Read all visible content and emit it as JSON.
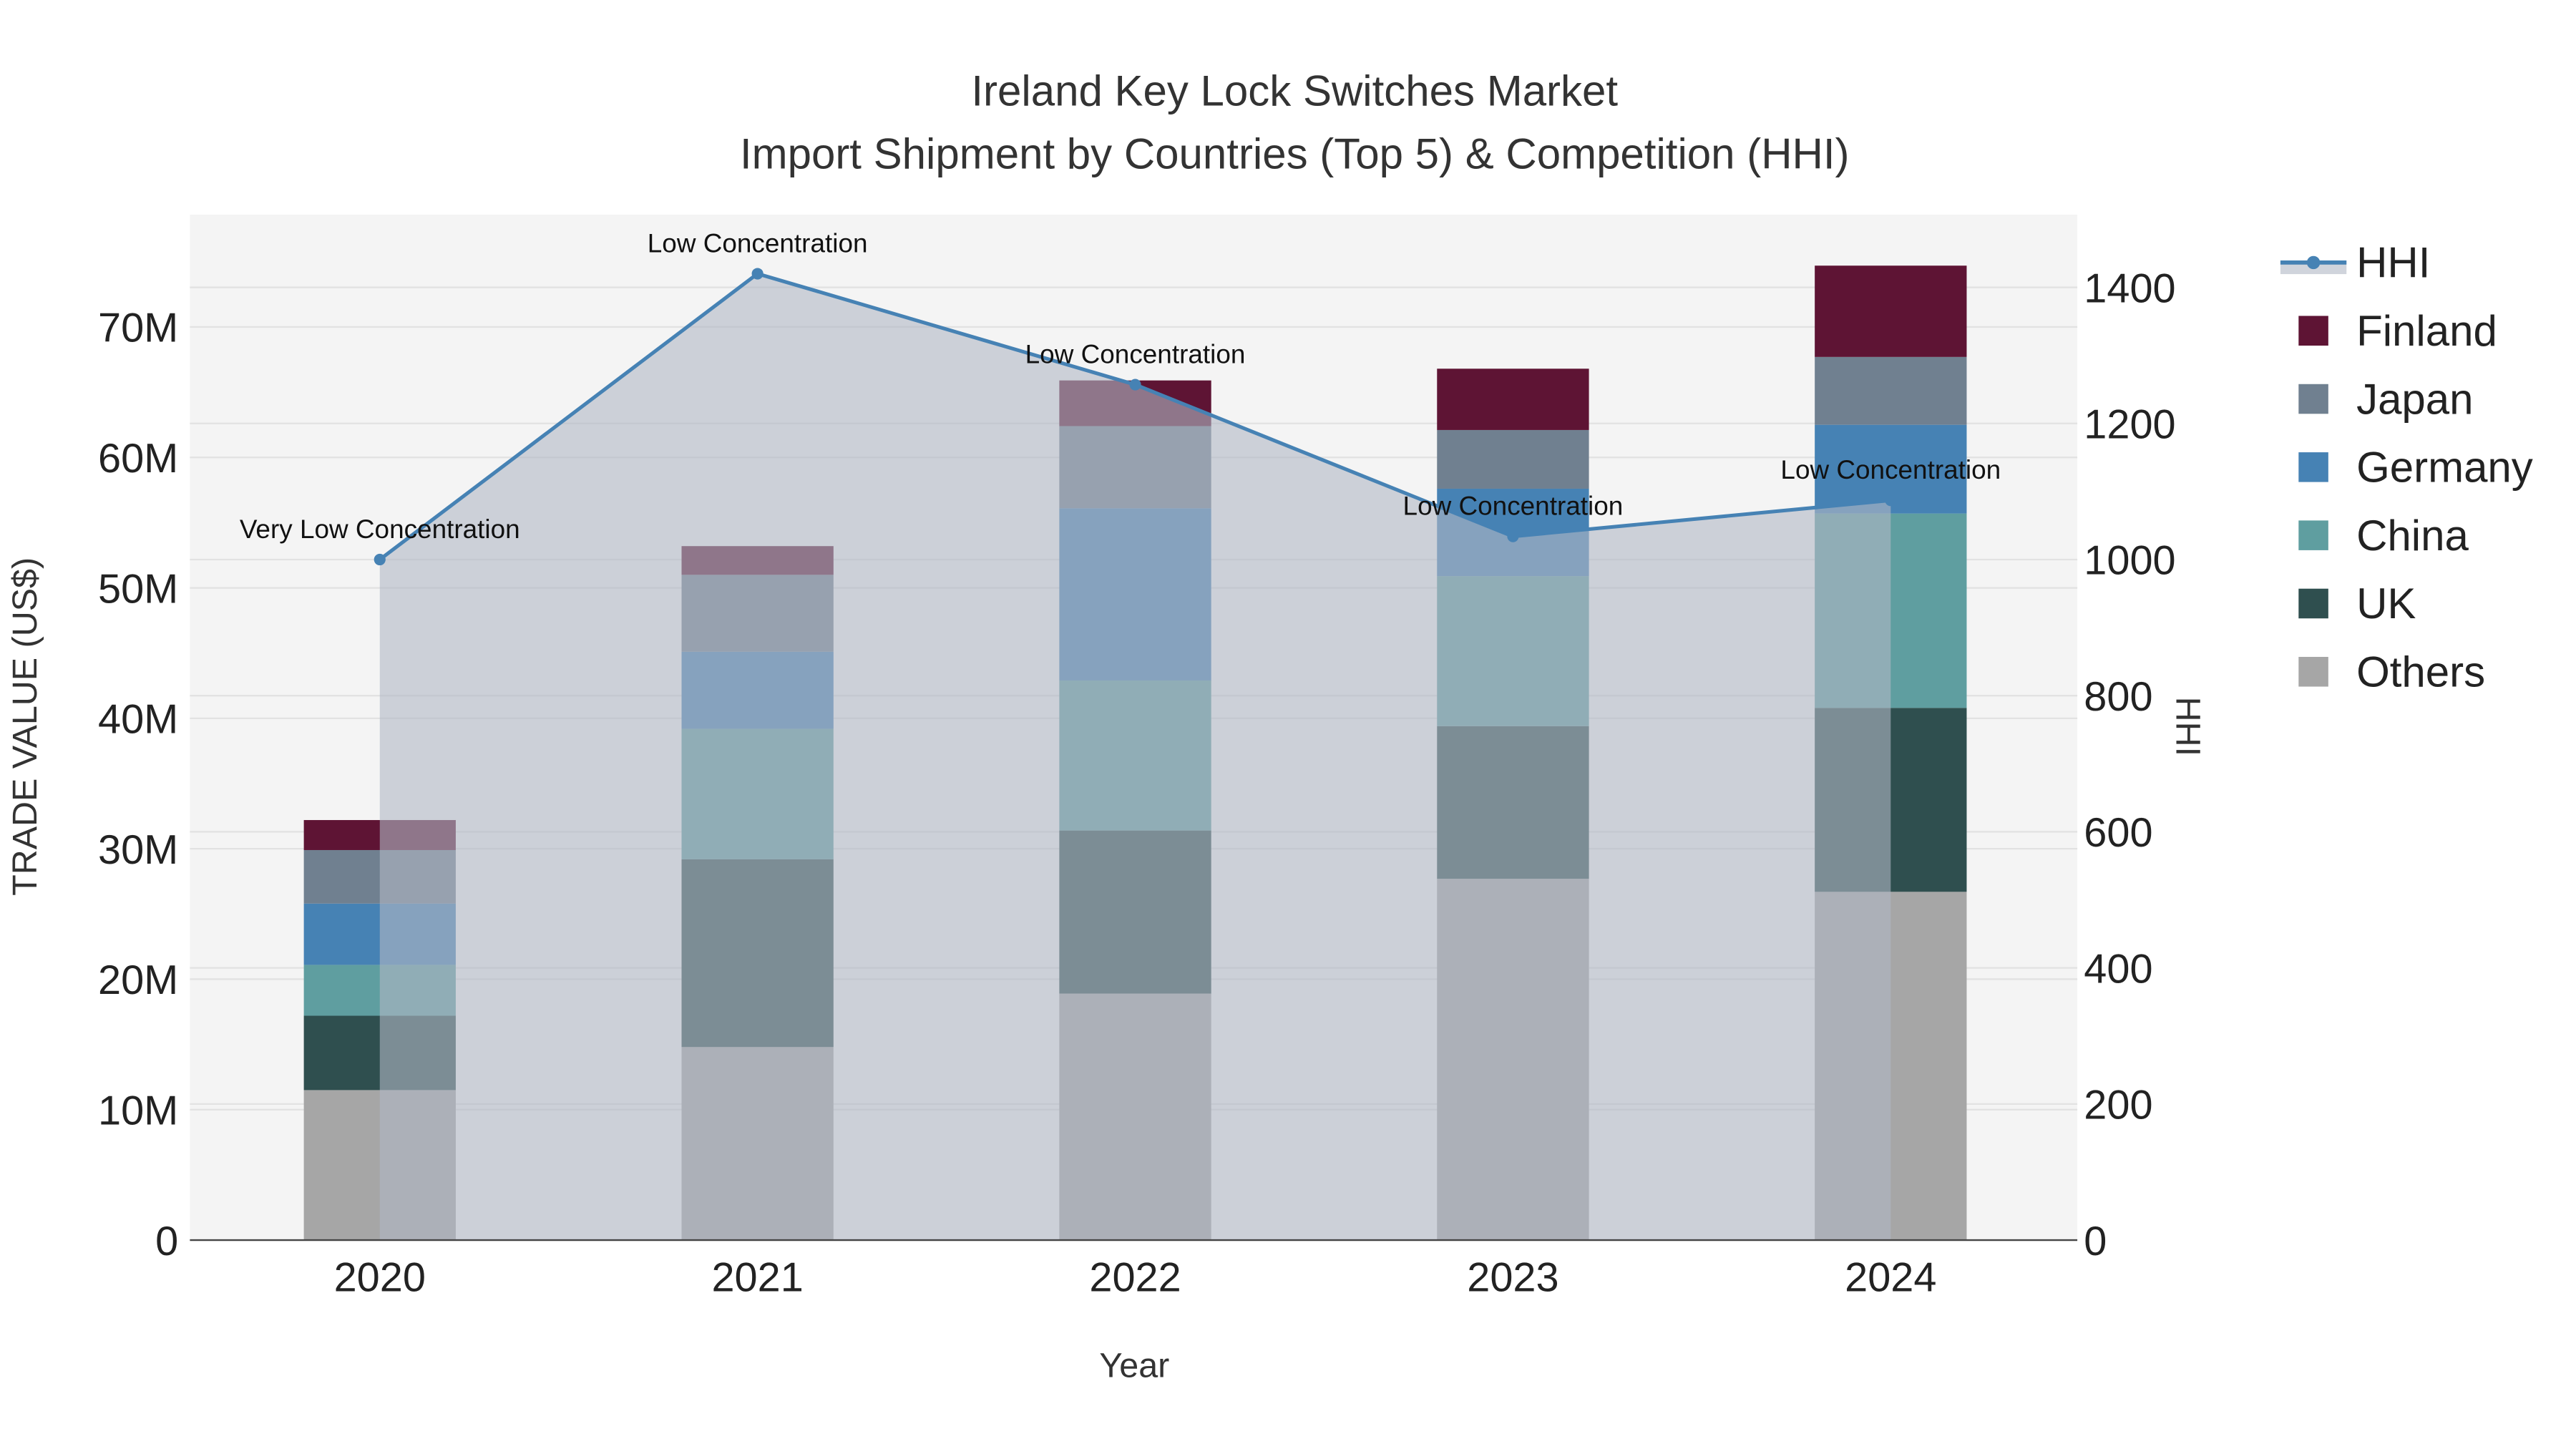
{
  "chart_data": {
    "type": "bar",
    "title": "Ireland Key Lock Switches Market",
    "subtitle": "Import Shipment by Countries (Top 5) & Competition (HHI)",
    "xlabel": "Year",
    "ylabel": "TRADE VALUE (US$)",
    "y2label": "HHI",
    "categories": [
      "2020",
      "2021",
      "2022",
      "2023",
      "2024"
    ],
    "ylim": [
      0,
      77000000
    ],
    "y2lim": [
      0,
      1500
    ],
    "yticks": [
      0,
      10000000,
      20000000,
      30000000,
      40000000,
      50000000,
      60000000,
      70000000
    ],
    "ytick_labels": [
      "0",
      "10M",
      "20M",
      "30M",
      "40M",
      "50M",
      "60M",
      "70M"
    ],
    "y2ticks": [
      0,
      200,
      400,
      600,
      800,
      1000,
      1200,
      1400
    ],
    "y2tick_labels": [
      "0",
      "200",
      "400",
      "600",
      "800",
      "1000",
      "1200",
      "1400"
    ],
    "grid": true,
    "legend_placement": "right",
    "series": [
      {
        "name": "Others",
        "color": "#a6a6a6",
        "values": [
          11500000,
          14800000,
          18900000,
          27700000,
          26700000
        ]
      },
      {
        "name": "UK",
        "color": "#2f4f4f",
        "values": [
          5700000,
          14400000,
          12500000,
          11700000,
          14100000
        ]
      },
      {
        "name": "China",
        "color": "#5f9ea0",
        "values": [
          3900000,
          10000000,
          11500000,
          11500000,
          14900000
        ]
      },
      {
        "name": "Germany",
        "color": "#4682b4",
        "values": [
          4700000,
          5900000,
          13200000,
          6700000,
          6800000
        ]
      },
      {
        "name": "Japan",
        "color": "#708090",
        "values": [
          4100000,
          5900000,
          6300000,
          4500000,
          5200000
        ]
      },
      {
        "name": "Finland",
        "color": "#5e1434",
        "values": [
          2300000,
          2200000,
          3500000,
          4700000,
          7000000
        ]
      }
    ],
    "hhi": {
      "name": "HHI",
      "color": "#4682b4",
      "values": [
        1000,
        1420,
        1257,
        1034,
        1087
      ],
      "annotations": [
        "Very Low Concentration",
        "Low Concentration",
        "Low Concentration",
        "Low Concentration",
        "Low Concentration"
      ]
    },
    "legend": [
      "HHI",
      "Finland",
      "Japan",
      "Germany",
      "China",
      "UK",
      "Others"
    ]
  }
}
